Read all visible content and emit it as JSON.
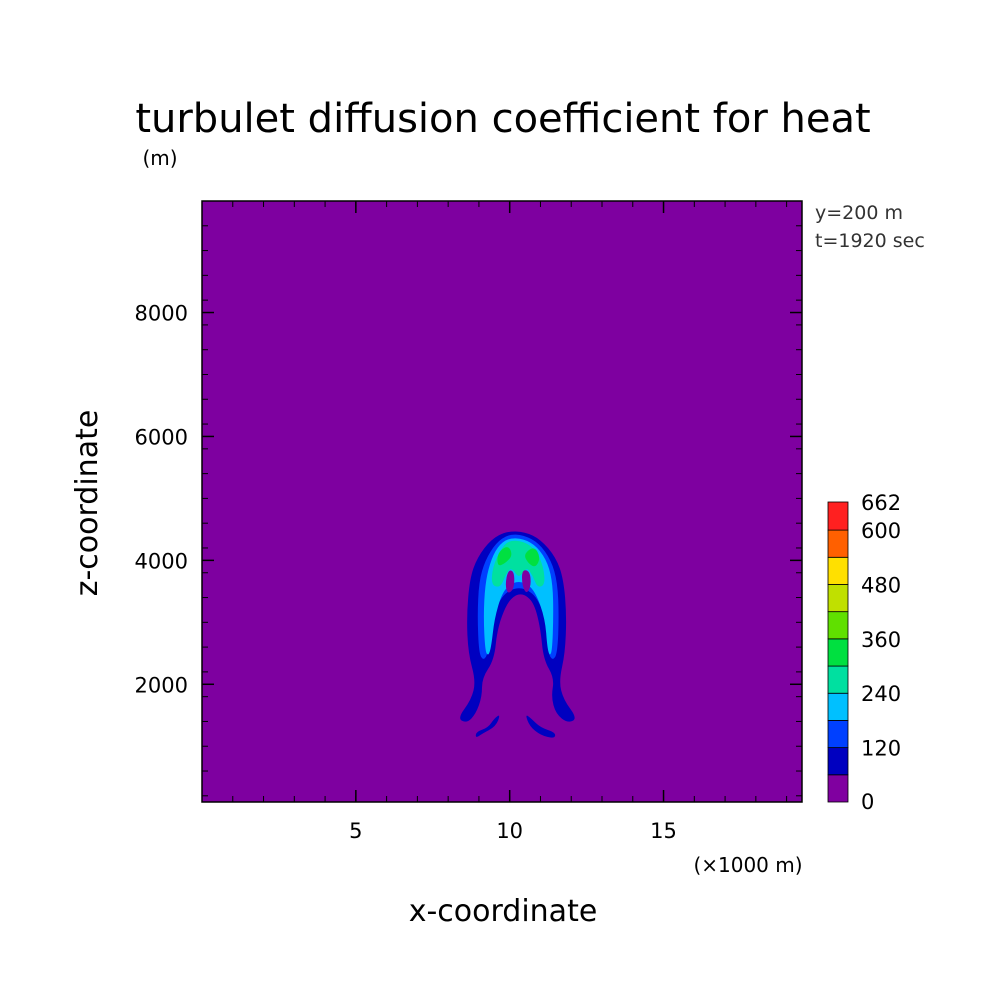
{
  "chart_data": {
    "type": "heatmap",
    "title": "turbulet diffusion coefficient for heat",
    "unit_label": "(m)",
    "xlabel": "x-coordinate",
    "ylabel": "z-coordinate",
    "x_unit_note": "(×1000 m)",
    "xlim": [
      0,
      19.5
    ],
    "ylim": [
      100,
      9800
    ],
    "x_ticks": [
      5,
      10,
      15
    ],
    "y_ticks": [
      2000,
      4000,
      6000,
      8000
    ],
    "annotations": [
      "y=200 m",
      "t=1920 sec"
    ],
    "colorbar": {
      "levels": [
        0,
        60,
        120,
        180,
        240,
        300,
        360,
        420,
        480,
        540,
        600,
        662
      ],
      "labels": [
        "0",
        "120",
        "240",
        "360",
        "480",
        "600",
        "662"
      ],
      "colors": [
        "#8000a0",
        "#0000c0",
        "#0040ff",
        "#00c0ff",
        "#00e0a0",
        "#00e040",
        "#60e000",
        "#c0e000",
        "#ffe000",
        "#ff6000",
        "#ff2020"
      ]
    },
    "background_color": "#7e00a0",
    "plume": {
      "x_center": 10,
      "x_extent": [
        8.3,
        12.2
      ],
      "z_extent": [
        1150,
        4450
      ],
      "peak_value_range": [
        300,
        360
      ]
    }
  }
}
